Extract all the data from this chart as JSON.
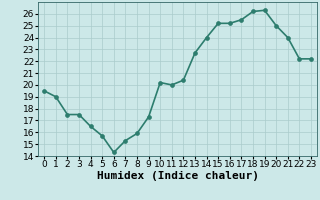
{
  "x": [
    0,
    1,
    2,
    3,
    4,
    5,
    6,
    7,
    8,
    9,
    10,
    11,
    12,
    13,
    14,
    15,
    16,
    17,
    18,
    19,
    20,
    21,
    22,
    23
  ],
  "y": [
    19.5,
    19.0,
    17.5,
    17.5,
    16.5,
    15.7,
    14.3,
    15.3,
    15.9,
    17.3,
    20.2,
    20.0,
    20.4,
    22.7,
    24.0,
    25.2,
    25.2,
    25.5,
    26.2,
    26.3,
    25.0,
    24.0,
    22.2,
    22.2
  ],
  "line_color": "#2d7d6e",
  "marker_color": "#2d7d6e",
  "bg_color": "#cce8e8",
  "grid_color": "#aacccc",
  "xlabel": "Humidex (Indice chaleur)",
  "xlim": [
    -0.5,
    23.5
  ],
  "ylim": [
    14,
    27
  ],
  "yticks": [
    14,
    15,
    16,
    17,
    18,
    19,
    20,
    21,
    22,
    23,
    24,
    25,
    26
  ],
  "xtick_labels": [
    "0",
    "1",
    "2",
    "3",
    "4",
    "5",
    "6",
    "7",
    "8",
    "9",
    "10",
    "11",
    "12",
    "13",
    "14",
    "15",
    "16",
    "17",
    "18",
    "19",
    "20",
    "21",
    "22",
    "23"
  ],
  "xlabel_fontsize": 8,
  "tick_fontsize": 6.5,
  "linewidth": 1.2,
  "markersize": 2.8
}
